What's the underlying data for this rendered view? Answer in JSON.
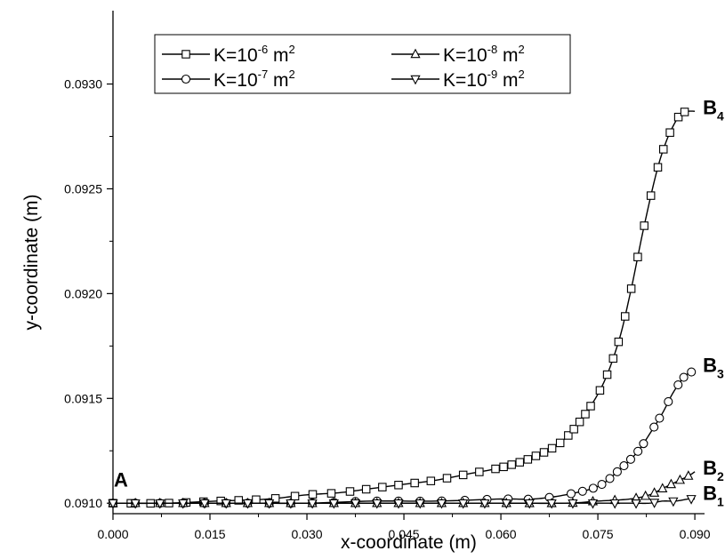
{
  "chart_data": {
    "type": "line",
    "xlabel": "x-coordinate (m)",
    "ylabel": "y-coordinate (m)",
    "xlim": [
      0.0,
      0.0915
    ],
    "ylim": [
      0.09095,
      0.09335
    ],
    "x_ticks": [
      "0.000",
      "0.015",
      "0.030",
      "0.045",
      "0.060",
      "0.075",
      "0.090"
    ],
    "y_ticks": [
      "0.0910",
      "0.0915",
      "0.0920",
      "0.0925",
      "0.0930"
    ],
    "legend_position": "top-left",
    "legend": [
      {
        "base": "K=10",
        "exp": "-6",
        "unit": " m",
        "unit_exp": "2",
        "marker": "square"
      },
      {
        "base": "K=10",
        "exp": "-8",
        "unit": " m",
        "unit_exp": "2",
        "marker": "triangle-up"
      },
      {
        "base": "K=10",
        "exp": "-7",
        "unit": " m",
        "unit_exp": "2",
        "marker": "circle"
      },
      {
        "base": "K=10",
        "exp": "-9",
        "unit": " m",
        "unit_exp": "2",
        "marker": "triangle-down"
      }
    ],
    "annotations": [
      {
        "text": "A",
        "sub": "",
        "x": 0.0,
        "y": 0.09102
      },
      {
        "text": "B",
        "sub": "4",
        "x": 0.09,
        "y": 0.09289
      },
      {
        "text": "B",
        "sub": "3",
        "x": 0.09,
        "y": 0.09166
      },
      {
        "text": "B",
        "sub": "2",
        "x": 0.09,
        "y": 0.09117
      },
      {
        "text": "B",
        "sub": "1",
        "x": 0.09,
        "y": 0.09105
      }
    ],
    "series": [
      {
        "marker": "square",
        "x": [
          0.0,
          0.008,
          0.016,
          0.024,
          0.03,
          0.035,
          0.04,
          0.045,
          0.05,
          0.055,
          0.06,
          0.065,
          0.07,
          0.075,
          0.078,
          0.08,
          0.082,
          0.084,
          0.0855,
          0.087,
          0.088,
          0.089,
          0.09
        ],
        "y": [
          0.091,
          0.091,
          0.09101,
          0.09102,
          0.09104,
          0.09105,
          0.09107,
          0.09109,
          0.09111,
          0.09114,
          0.09117,
          0.09122,
          0.09131,
          0.09152,
          0.09175,
          0.092,
          0.0923,
          0.09257,
          0.09272,
          0.09282,
          0.09286,
          0.09287,
          0.09287
        ]
      },
      {
        "marker": "circle",
        "x": [
          0.0,
          0.01,
          0.02,
          0.03,
          0.04,
          0.05,
          0.06,
          0.065,
          0.07,
          0.075,
          0.078,
          0.081,
          0.083,
          0.085,
          0.0865,
          0.088,
          0.089,
          0.09
        ],
        "y": [
          0.091,
          0.091,
          0.091,
          0.091,
          0.09101,
          0.09101,
          0.09102,
          0.09102,
          0.09104,
          0.09108,
          0.09115,
          0.09124,
          0.09133,
          0.09143,
          0.09152,
          0.09159,
          0.09162,
          0.09163
        ]
      },
      {
        "marker": "triangle-up",
        "x": [
          0.0,
          0.01,
          0.02,
          0.03,
          0.04,
          0.05,
          0.06,
          0.07,
          0.075,
          0.08,
          0.083,
          0.085,
          0.087,
          0.089,
          0.09
        ],
        "y": [
          0.091,
          0.091,
          0.091,
          0.091,
          0.091,
          0.091,
          0.091,
          0.091,
          0.09101,
          0.09102,
          0.09104,
          0.09107,
          0.0911,
          0.09113,
          0.09115
        ]
      },
      {
        "marker": "triangle-down",
        "x": [
          0.0,
          0.01,
          0.02,
          0.03,
          0.04,
          0.05,
          0.06,
          0.07,
          0.075,
          0.08,
          0.083,
          0.085,
          0.087,
          0.089,
          0.09
        ],
        "y": [
          0.091,
          0.091,
          0.091,
          0.091,
          0.091,
          0.091,
          0.091,
          0.091,
          0.091,
          0.091,
          0.091,
          0.09101,
          0.09101,
          0.09102,
          0.09102
        ]
      }
    ]
  }
}
